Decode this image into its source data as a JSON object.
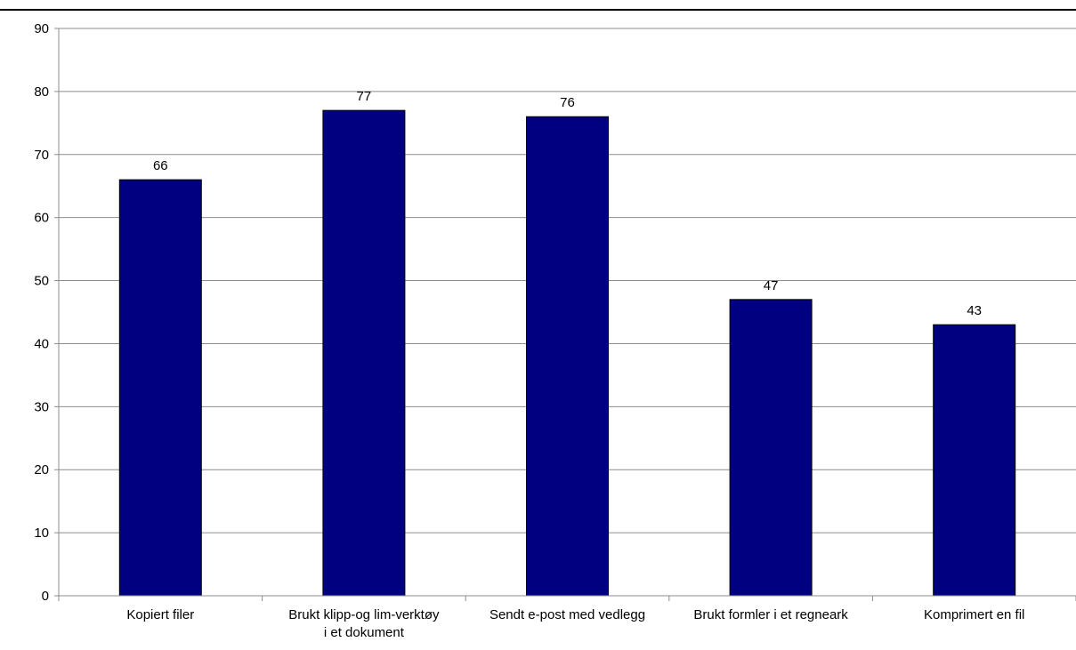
{
  "chart_data": {
    "type": "bar",
    "title": "",
    "xlabel": "",
    "ylabel": "",
    "categories": [
      [
        "Kopiert filer"
      ],
      [
        "Brukt klipp-og lim-verktøy",
        "i et dokument"
      ],
      [
        "Sendt e-post med vedlegg"
      ],
      [
        "Brukt formler i et regneark"
      ],
      [
        "Komprimert en fil"
      ]
    ],
    "values": [
      66,
      77,
      76,
      47,
      43
    ],
    "ylim": [
      0,
      90
    ],
    "yticks": [
      "0",
      "10",
      "20",
      "30",
      "40",
      "50",
      "60",
      "70",
      "80",
      "90"
    ],
    "grid": true,
    "legend": "none",
    "bar_color": "#000080",
    "grid_color": "#8c8c8c"
  }
}
